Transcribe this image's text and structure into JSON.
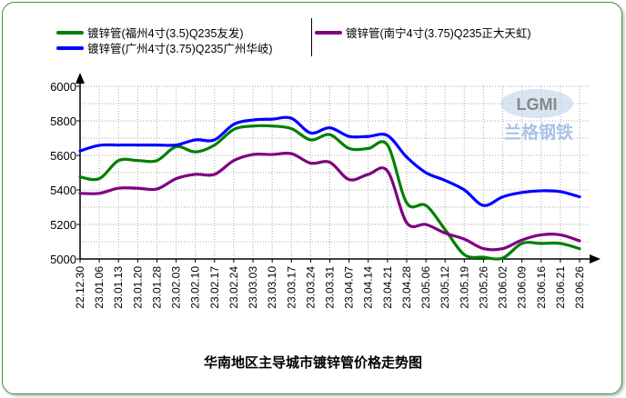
{
  "chart_data": {
    "type": "line",
    "title": "华南地区主导城市镀锌管价格走势图",
    "xlabel": "",
    "ylabel": "",
    "ylim": [
      5000,
      6000
    ],
    "yticks": [
      5000,
      5200,
      5400,
      5600,
      5800,
      6000
    ],
    "grid": true,
    "legend_position": "top",
    "categories": [
      "22.12.30",
      "23.01.06",
      "23.01.13",
      "23.01.20",
      "23.01.28",
      "23.02.03",
      "23.02.10",
      "23.02.17",
      "23.02.24",
      "23.03.03",
      "23.03.10",
      "23.03.17",
      "23.03.24",
      "23.03.31",
      "23.04.07",
      "23.04.14",
      "23.04.21",
      "23.04.28",
      "23.05.06",
      "23.05.12",
      "23.05.19",
      "23.05.26",
      "23.06.02",
      "23.06.09",
      "23.06.16",
      "23.06.21",
      "23.06.26"
    ],
    "series": [
      {
        "name": "镀锌管(福州4寸(3.5)Q235友发)",
        "color": "#008000",
        "values": [
          5475,
          5465,
          5570,
          5570,
          5570,
          5650,
          5620,
          5660,
          5750,
          5770,
          5770,
          5755,
          5690,
          5720,
          5640,
          5640,
          5660,
          5325,
          5310,
          5170,
          5025,
          5010,
          5005,
          5090,
          5090,
          5090,
          5060
        ]
      },
      {
        "name": "镀锌管(广州4寸(3.75)Q235广州华岐)",
        "color": "#0000ff",
        "values": [
          5626,
          5658,
          5660,
          5660,
          5660,
          5660,
          5690,
          5690,
          5780,
          5805,
          5810,
          5815,
          5730,
          5760,
          5710,
          5710,
          5715,
          5590,
          5500,
          5455,
          5400,
          5310,
          5360,
          5385,
          5395,
          5390,
          5360
        ]
      },
      {
        "name": "镀锌管(南宁4寸(3.75)Q235正大天虹)",
        "color": "#800080",
        "values": [
          5380,
          5380,
          5410,
          5410,
          5405,
          5465,
          5490,
          5490,
          5570,
          5605,
          5605,
          5610,
          5555,
          5560,
          5460,
          5490,
          5510,
          5210,
          5200,
          5150,
          5115,
          5060,
          5060,
          5110,
          5140,
          5140,
          5105
        ]
      }
    ]
  },
  "watermark": {
    "logo": "LGMI",
    "text": "兰格钢铁"
  }
}
